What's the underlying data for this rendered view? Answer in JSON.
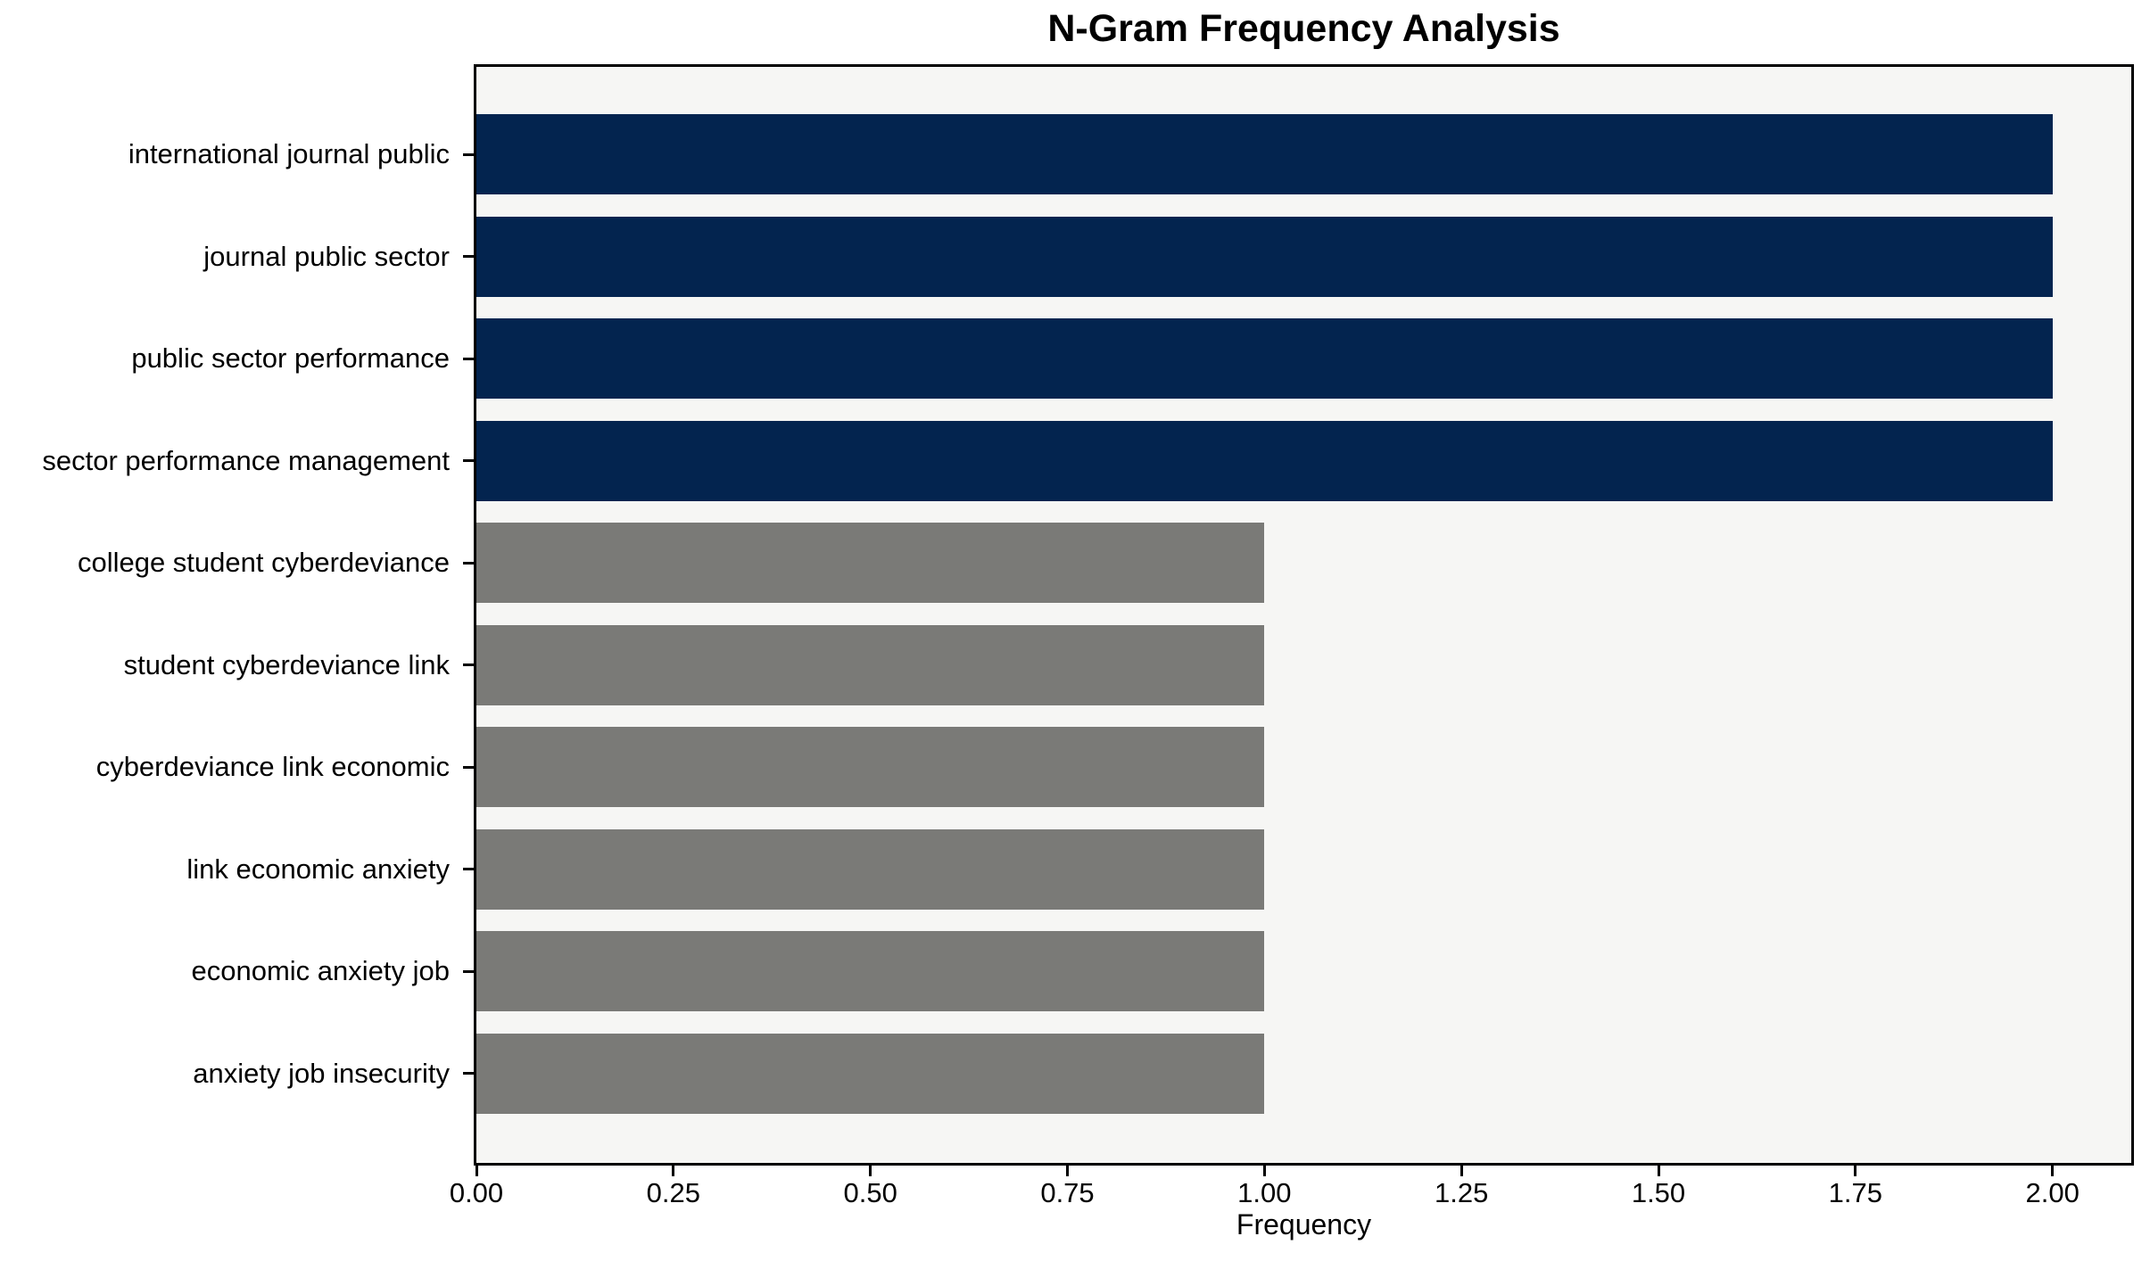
{
  "chart_data": {
    "type": "bar",
    "orientation": "horizontal",
    "title": "N-Gram Frequency Analysis",
    "xlabel": "Frequency",
    "ylabel": "",
    "categories": [
      "international journal public",
      "journal public sector",
      "public sector performance",
      "sector performance management",
      "college student cyberdeviance",
      "student cyberdeviance link",
      "cyberdeviance link economic",
      "link economic anxiety",
      "economic anxiety job",
      "anxiety job insecurity"
    ],
    "values": [
      2,
      2,
      2,
      2,
      1,
      1,
      1,
      1,
      1,
      1
    ],
    "xticks": [
      "0.00",
      "0.25",
      "0.50",
      "0.75",
      "1.00",
      "1.25",
      "1.50",
      "1.75",
      "2.00"
    ],
    "xtick_values": [
      0,
      0.25,
      0.5,
      0.75,
      1.0,
      1.25,
      1.5,
      1.75,
      2.0
    ],
    "xlim": [
      0,
      2.1
    ],
    "grid": false,
    "legend": null,
    "colors": {
      "bar_highlight": "#03244f",
      "bar_default": "#7a7a77",
      "plot_background": "#f6f6f4",
      "spine": "#000000",
      "text": "#000000"
    },
    "bar_colors": [
      "#03244f",
      "#03244f",
      "#03244f",
      "#03244f",
      "#7a7a77",
      "#7a7a77",
      "#7a7a77",
      "#7a7a77",
      "#7a7a77",
      "#7a7a77"
    ]
  }
}
